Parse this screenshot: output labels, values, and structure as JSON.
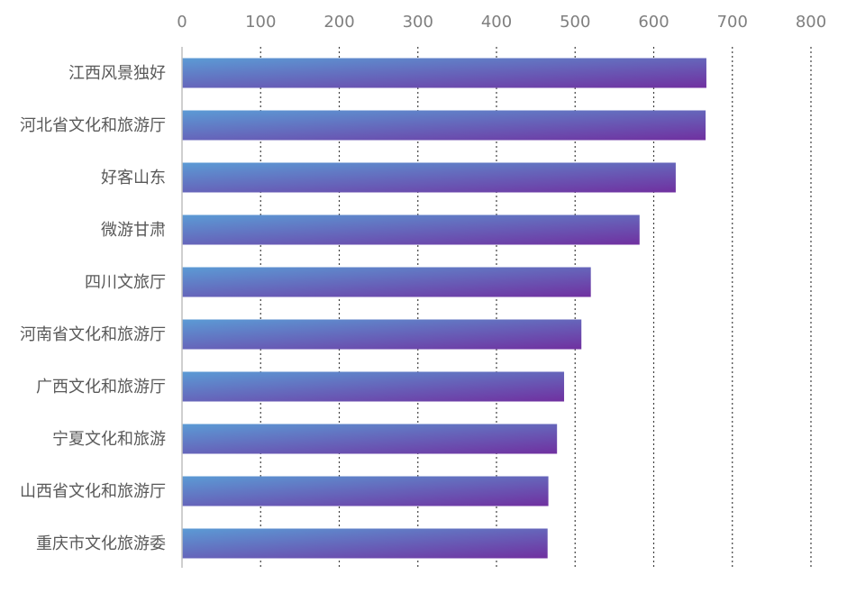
{
  "chart_data": {
    "type": "bar",
    "orientation": "horizontal",
    "title": "",
    "xlabel": "",
    "ylabel": "",
    "xlim": [
      0,
      800
    ],
    "x_ticks": [
      0,
      100,
      200,
      300,
      400,
      500,
      600,
      700,
      800
    ],
    "x_tick_labels": [
      "0",
      "100",
      "200",
      "300",
      "400",
      "500",
      "600",
      "700",
      "800"
    ],
    "grid": "vertical dotted",
    "axis_position": "top",
    "legend": "none",
    "categories": [
      "江西风景独好",
      "河北省文化和旅游厅",
      "好客山东",
      "微游甘肃",
      "四川文旅厅",
      "河南省文化和旅游厅",
      "广西文化和旅游厅",
      "宁夏文化和旅游",
      "山西省文化和旅游厅",
      "重庆市文化旅游委"
    ],
    "values": [
      667,
      666,
      628,
      582,
      520,
      508,
      486,
      477,
      466,
      465
    ],
    "colors": {
      "bar_gradient_start": "#5b9bd5",
      "bar_gradient_end": "#7030a0",
      "grid": "#404040",
      "axis": "#bfbfbf",
      "tick_text": "#7f7f7f",
      "category_text": "#595959"
    }
  }
}
